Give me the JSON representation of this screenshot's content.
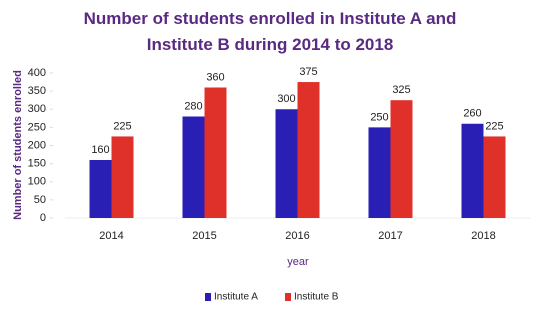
{
  "chart_data": {
    "type": "bar",
    "title": "Number of students enrolled in Institute A and Institute B during 2014 to 2018",
    "y_label": "Number of students enrolled",
    "x_label": "year",
    "categories": [
      "2014",
      "2015",
      "2016",
      "2017",
      "2018"
    ],
    "series": [
      {
        "name": "Institute A",
        "color": "#2a1fb5",
        "values": [
          160,
          280,
          300,
          250,
          260
        ]
      },
      {
        "name": "Institute B",
        "color": "#e0302a",
        "values": [
          225,
          360,
          375,
          325,
          225
        ]
      }
    ],
    "ylim": [
      0,
      400
    ],
    "yticks": [
      0,
      50,
      100,
      150,
      200,
      250,
      300,
      350,
      400
    ],
    "grid": false,
    "legend": "bottom"
  }
}
